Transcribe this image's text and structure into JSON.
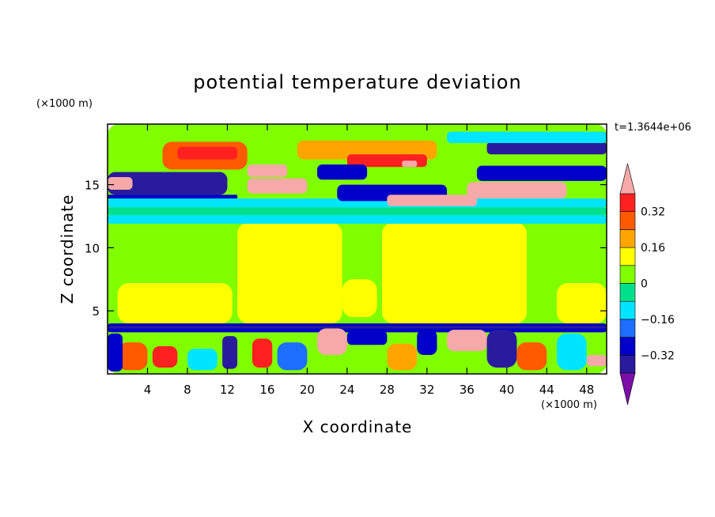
{
  "chart_data": {
    "type": "heatmap",
    "title": "potential temperature deviation",
    "time_label": "t=1.3644e+06",
    "xlabel": "X coordinate",
    "ylabel": "Z coordinate",
    "x_unit": "(×1000 m)",
    "y_unit": "(×1000 m)",
    "xlim": [
      0,
      50
    ],
    "ylim": [
      0,
      19.8
    ],
    "x_ticks": [
      4,
      8,
      12,
      16,
      20,
      24,
      28,
      32,
      36,
      40,
      44,
      48
    ],
    "y_ticks": [
      5,
      10,
      15
    ],
    "colorbar": {
      "levels": [
        -0.4,
        -0.32,
        -0.24,
        -0.16,
        -0.08,
        0,
        0.08,
        0.16,
        0.24,
        0.32,
        0.4
      ],
      "labels": [
        "0.32",
        "0.16",
        "0",
        "−0.16",
        "−0.32"
      ],
      "label_values": [
        0.32,
        0.16,
        0,
        -0.16,
        -0.32
      ],
      "colors": [
        "#7b0fa8",
        "#2a1a9e",
        "#0000c8",
        "#1e6eff",
        "#00e5ff",
        "#00e08a",
        "#80ff00",
        "#ffff00",
        "#ffa500",
        "#ff5a00",
        "#ff2020",
        "#f7a8a8"
      ],
      "extend": "both"
    },
    "fields": {
      "background_band_0_4": "mixed turbulent layer, values span full range -0.4 to 0.4",
      "mid_layer_4_12": "mostly 0 to 0.08 with columns of 0.08",
      "tropopause_12_14": "-0.08 to -0.16",
      "upper_14_19": "strong anomalies, -0.4 to 0.4"
    },
    "regions": [
      {
        "x": [
          0,
          50
        ],
        "z": [
          0,
          19.8
        ],
        "level": 0.0
      },
      {
        "x": [
          0,
          50
        ],
        "z": [
          4,
          12
        ],
        "level": 0.0
      },
      {
        "x": [
          1,
          12.5
        ],
        "z": [
          4,
          7.2
        ],
        "level": 0.08
      },
      {
        "x": [
          13,
          23.5
        ],
        "z": [
          4,
          12
        ],
        "level": 0.08
      },
      {
        "x": [
          23.5,
          27
        ],
        "z": [
          4.5,
          7.5
        ],
        "level": 0.08
      },
      {
        "x": [
          27.5,
          42
        ],
        "z": [
          4,
          12
        ],
        "level": 0.08
      },
      {
        "x": [
          45,
          50
        ],
        "z": [
          4,
          7.2
        ],
        "level": 0.08
      },
      {
        "x": [
          0,
          50
        ],
        "z": [
          11.9,
          12.6
        ],
        "level": -0.16
      },
      {
        "x": [
          0,
          50
        ],
        "z": [
          12.6,
          13.2
        ],
        "level": -0.08
      },
      {
        "x": [
          0,
          50
        ],
        "z": [
          13.2,
          13.9
        ],
        "level": -0.16
      },
      {
        "x": [
          0,
          12
        ],
        "z": [
          14.2,
          16
        ],
        "level": -0.4
      },
      {
        "x": [
          0,
          13
        ],
        "z": [
          13.9,
          14.2
        ],
        "level": -0.32
      },
      {
        "x": [
          0,
          2.5
        ],
        "z": [
          14.6,
          15.6
        ],
        "level": 0.4
      },
      {
        "x": [
          5.5,
          14
        ],
        "z": [
          16.2,
          18.4
        ],
        "level": 0.24
      },
      {
        "x": [
          7,
          13
        ],
        "z": [
          17,
          18
        ],
        "level": 0.32
      },
      {
        "x": [
          14,
          18
        ],
        "z": [
          15.6,
          16.6
        ],
        "level": 0.4
      },
      {
        "x": [
          14,
          20
        ],
        "z": [
          14.3,
          15.5
        ],
        "level": 0.4
      },
      {
        "x": [
          19,
          33
        ],
        "z": [
          17,
          18.5
        ],
        "level": 0.16
      },
      {
        "x": [
          24,
          32
        ],
        "z": [
          16.4,
          17.4
        ],
        "level": 0.32
      },
      {
        "x": [
          29.5,
          31
        ],
        "z": [
          16.4,
          16.9
        ],
        "level": 0.4
      },
      {
        "x": [
          21,
          26
        ],
        "z": [
          15.4,
          16.6
        ],
        "level": -0.32
      },
      {
        "x": [
          23,
          34
        ],
        "z": [
          13.7,
          15
        ],
        "level": -0.32
      },
      {
        "x": [
          28,
          37
        ],
        "z": [
          13.3,
          14.2
        ],
        "level": 0.4
      },
      {
        "x": [
          36,
          46
        ],
        "z": [
          13.9,
          15.2
        ],
        "level": 0.4
      },
      {
        "x": [
          37,
          50
        ],
        "z": [
          15.3,
          16.5
        ],
        "level": -0.32
      },
      {
        "x": [
          38,
          50
        ],
        "z": [
          17.4,
          18.4
        ],
        "level": -0.4
      },
      {
        "x": [
          34,
          50
        ],
        "z": [
          18.3,
          19.2
        ],
        "level": -0.16
      },
      {
        "x": [
          0,
          50
        ],
        "z": [
          3.3,
          4
        ],
        "level": -0.32
      },
      {
        "x": [
          0,
          50
        ],
        "z": [
          3.6,
          3.8
        ],
        "level": -0.4
      },
      {
        "x": [
          1,
          4
        ],
        "z": [
          0.3,
          2.5
        ],
        "level": 0.24
      },
      {
        "x": [
          4.5,
          7
        ],
        "z": [
          0.5,
          2.2
        ],
        "level": 0.32
      },
      {
        "x": [
          0,
          1.5
        ],
        "z": [
          0.2,
          3.2
        ],
        "level": -0.32
      },
      {
        "x": [
          8,
          11
        ],
        "z": [
          0.3,
          2
        ],
        "level": -0.16
      },
      {
        "x": [
          11.5,
          13
        ],
        "z": [
          0.4,
          3
        ],
        "level": -0.4
      },
      {
        "x": [
          14.5,
          16.5
        ],
        "z": [
          0.5,
          2.8
        ],
        "level": 0.32
      },
      {
        "x": [
          17,
          20
        ],
        "z": [
          0.3,
          2.5
        ],
        "level": -0.24
      },
      {
        "x": [
          21,
          24
        ],
        "z": [
          1.5,
          3.6
        ],
        "level": 0.4
      },
      {
        "x": [
          24,
          28
        ],
        "z": [
          2.3,
          3.4
        ],
        "level": -0.32
      },
      {
        "x": [
          28,
          31
        ],
        "z": [
          0.3,
          2.4
        ],
        "level": 0.16
      },
      {
        "x": [
          31,
          33
        ],
        "z": [
          1.5,
          3.5
        ],
        "level": -0.32
      },
      {
        "x": [
          34,
          38
        ],
        "z": [
          1.8,
          3.5
        ],
        "level": 0.4
      },
      {
        "x": [
          38,
          41
        ],
        "z": [
          0.5,
          3.5
        ],
        "level": -0.4
      },
      {
        "x": [
          41,
          44
        ],
        "z": [
          0.3,
          2.5
        ],
        "level": 0.24
      },
      {
        "x": [
          45,
          48
        ],
        "z": [
          0.3,
          3.2
        ],
        "level": -0.16
      },
      {
        "x": [
          48,
          50
        ],
        "z": [
          0.6,
          1.5
        ],
        "level": 0.4
      }
    ]
  }
}
